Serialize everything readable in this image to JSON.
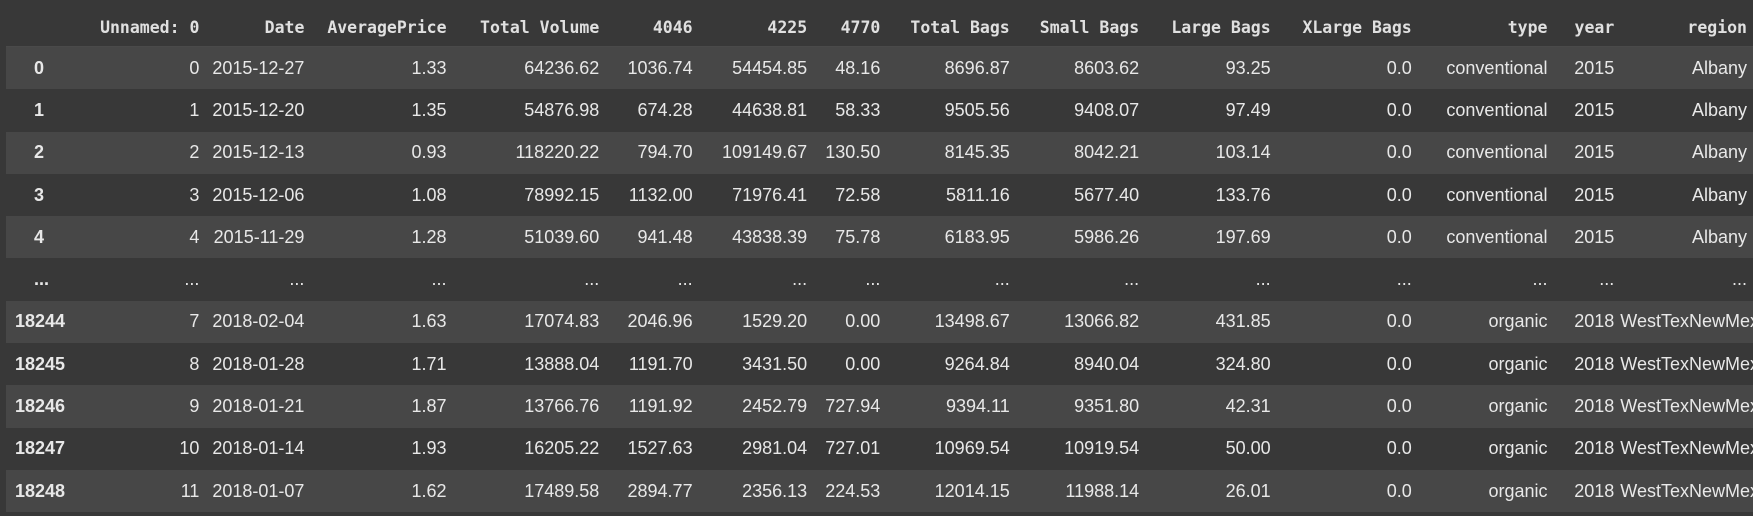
{
  "columns": [
    "",
    "Unnamed: 0",
    "Date",
    "AveragePrice",
    "Total Volume",
    "4046",
    "4225",
    "4770",
    "Total Bags",
    "Small Bags",
    "Large Bags",
    "XLarge Bags",
    "type",
    "year",
    "region"
  ],
  "rows": [
    [
      "0",
      "0",
      "2015-12-27",
      "1.33",
      "64236.62",
      "1036.74",
      "54454.85",
      "48.16",
      "8696.87",
      "8603.62",
      "93.25",
      "0.0",
      "conventional",
      "2015",
      "Albany"
    ],
    [
      "1",
      "1",
      "2015-12-20",
      "1.35",
      "54876.98",
      "674.28",
      "44638.81",
      "58.33",
      "9505.56",
      "9408.07",
      "97.49",
      "0.0",
      "conventional",
      "2015",
      "Albany"
    ],
    [
      "2",
      "2",
      "2015-12-13",
      "0.93",
      "118220.22",
      "794.70",
      "109149.67",
      "130.50",
      "8145.35",
      "8042.21",
      "103.14",
      "0.0",
      "conventional",
      "2015",
      "Albany"
    ],
    [
      "3",
      "3",
      "2015-12-06",
      "1.08",
      "78992.15",
      "1132.00",
      "71976.41",
      "72.58",
      "5811.16",
      "5677.40",
      "133.76",
      "0.0",
      "conventional",
      "2015",
      "Albany"
    ],
    [
      "4",
      "4",
      "2015-11-29",
      "1.28",
      "51039.60",
      "941.48",
      "43838.39",
      "75.78",
      "6183.95",
      "5986.26",
      "197.69",
      "0.0",
      "conventional",
      "2015",
      "Albany"
    ],
    [
      "...",
      "...",
      "...",
      "...",
      "...",
      "...",
      "...",
      "...",
      "...",
      "...",
      "...",
      "...",
      "...",
      "...",
      "..."
    ],
    [
      "18244",
      "7",
      "2018-02-04",
      "1.63",
      "17074.83",
      "2046.96",
      "1529.20",
      "0.00",
      "13498.67",
      "13066.82",
      "431.85",
      "0.0",
      "organic",
      "2018",
      "WestTexNewMexico"
    ],
    [
      "18245",
      "8",
      "2018-01-28",
      "1.71",
      "13888.04",
      "1191.70",
      "3431.50",
      "0.00",
      "9264.84",
      "8940.04",
      "324.80",
      "0.0",
      "organic",
      "2018",
      "WestTexNewMexico"
    ],
    [
      "18246",
      "9",
      "2018-01-21",
      "1.87",
      "13766.76",
      "1191.92",
      "2452.79",
      "727.94",
      "9394.11",
      "9351.80",
      "42.31",
      "0.0",
      "organic",
      "2018",
      "WestTexNewMexico"
    ],
    [
      "18247",
      "10",
      "2018-01-14",
      "1.93",
      "16205.22",
      "1527.63",
      "2981.04",
      "727.01",
      "10969.54",
      "10919.54",
      "50.00",
      "0.0",
      "organic",
      "2018",
      "WestTexNewMexico"
    ],
    [
      "18248",
      "11",
      "2018-01-07",
      "1.62",
      "17489.58",
      "2894.77",
      "2356.13",
      "224.53",
      "12014.15",
      "11988.14",
      "26.01",
      "0.0",
      "organic",
      "2018",
      "WestTexNewMexico"
    ]
  ]
}
